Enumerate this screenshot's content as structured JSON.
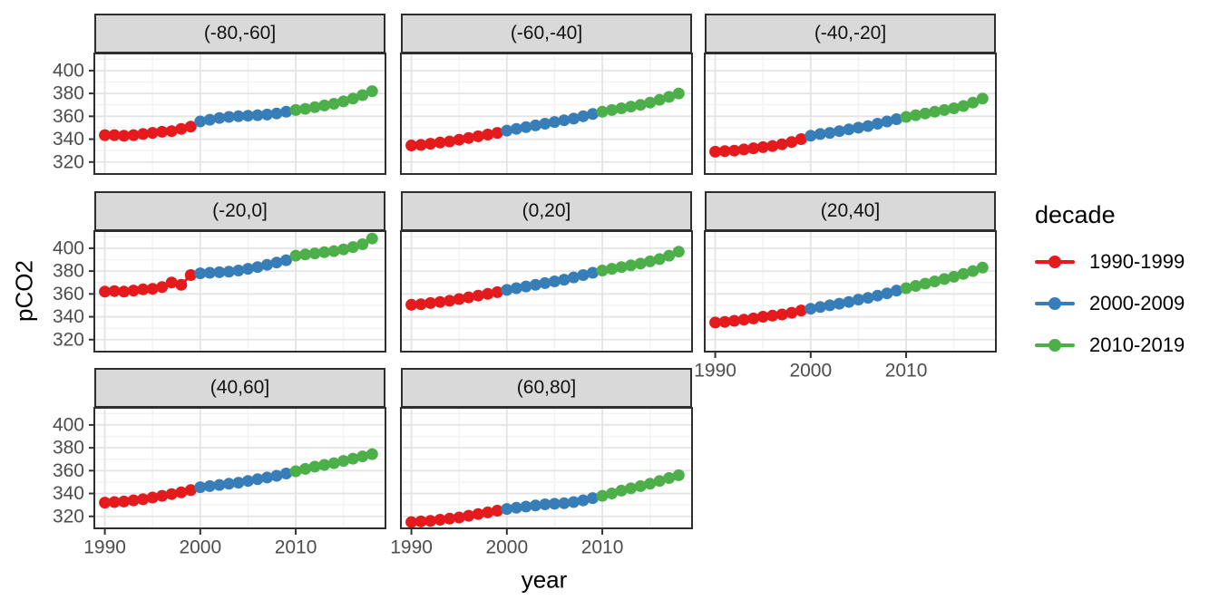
{
  "chart_data": {
    "type": "scatter",
    "title": "",
    "xlabel": "year",
    "ylabel": "pCO2",
    "facet_note": "faceted by latitude band, 3x3 grid, last cell empty",
    "xlim": [
      1988.9,
      2019.4
    ],
    "ylim": [
      309.5,
      415
    ],
    "x_ticks": [
      1990,
      2000,
      2010
    ],
    "x_minor_ticks": [
      1995,
      2005,
      2015
    ],
    "y_ticks": [
      320,
      340,
      360,
      380,
      400
    ],
    "y_minor_ticks": [
      330,
      350,
      370,
      390,
      410
    ],
    "grid": "major and minor gridlines, light gray on white, panel border dark",
    "legend": {
      "title": "decade",
      "position": "right"
    },
    "decades": [
      {
        "label": "1990-1999",
        "color": "#E41A1C"
      },
      {
        "label": "2000-2009",
        "color": "#377EB8"
      },
      {
        "label": "2010-2019",
        "color": "#4DAF4A"
      }
    ],
    "years": [
      1990,
      1991,
      1992,
      1993,
      1994,
      1995,
      1996,
      1997,
      1998,
      1999,
      2000,
      2001,
      2002,
      2003,
      2004,
      2005,
      2006,
      2007,
      2008,
      2009,
      2010,
      2011,
      2012,
      2013,
      2014,
      2015,
      2016,
      2017,
      2018
    ],
    "facets": [
      {
        "label": "(-80,-60]",
        "values": [
          343.5,
          343.5,
          343,
          343.5,
          344.5,
          345.5,
          346.5,
          347,
          349,
          351,
          355.5,
          357,
          358.5,
          359.5,
          360,
          360.5,
          361,
          361.5,
          362.5,
          364,
          365.5,
          366.5,
          368,
          369.5,
          371,
          373,
          375.5,
          378.5,
          382
        ]
      },
      {
        "label": "(-60,-40]",
        "values": [
          334.5,
          335,
          336,
          337,
          338,
          339.5,
          341,
          342.5,
          344,
          345.5,
          347.5,
          349,
          350.5,
          352,
          353.5,
          355,
          356.5,
          358,
          360,
          362,
          364,
          365.5,
          367,
          368.5,
          370,
          372,
          374.5,
          377,
          380
        ]
      },
      {
        "label": "(-40,-20]",
        "values": [
          329,
          329.5,
          330,
          331,
          332,
          333,
          334,
          335.5,
          337.5,
          340,
          343,
          344.5,
          345.5,
          347,
          348.5,
          350,
          351.5,
          353.5,
          355.5,
          357.5,
          359.5,
          361,
          362.5,
          364,
          365.5,
          367,
          369,
          372,
          375.5
        ]
      },
      {
        "label": "(-20,0]",
        "values": [
          362,
          362.5,
          362,
          363,
          364,
          364.5,
          366,
          370,
          368,
          376.5,
          378,
          378.5,
          379,
          379.5,
          380.5,
          382,
          383.5,
          385.5,
          387.5,
          389.5,
          393.5,
          394.5,
          395.5,
          396.5,
          397.5,
          399,
          401,
          403.5,
          408.5
        ]
      },
      {
        "label": "(0,20]",
        "values": [
          350.5,
          351,
          352,
          353,
          354,
          355.5,
          357,
          358.5,
          360,
          361.5,
          363.5,
          365,
          366.5,
          368,
          369.5,
          371,
          372.5,
          374.5,
          376.5,
          378.5,
          380.5,
          382,
          383.5,
          385,
          386.5,
          388.5,
          390.5,
          393.5,
          397
        ]
      },
      {
        "label": "(20,40]",
        "values": [
          335,
          335.5,
          336.5,
          337.5,
          338.5,
          340,
          341,
          342,
          343.5,
          345.5,
          347,
          348.5,
          350,
          351.5,
          353,
          355,
          356.5,
          358.5,
          360.5,
          363,
          365,
          367,
          369,
          371,
          373,
          375,
          377.5,
          380,
          383
        ]
      },
      {
        "label": "(40,60]",
        "values": [
          332,
          332.5,
          333,
          334,
          335,
          336.5,
          338,
          339.5,
          341,
          343,
          345.5,
          346.5,
          347.5,
          348.5,
          349.5,
          351,
          352.5,
          354,
          355.5,
          357.5,
          359.5,
          361.5,
          363.5,
          365,
          366.5,
          368.5,
          370.5,
          372.5,
          374.5
        ]
      },
      {
        "label": "(60,80]",
        "values": [
          315,
          315.5,
          316,
          317,
          318,
          319,
          320.5,
          322,
          323.5,
          325,
          326.5,
          327.5,
          328.5,
          329.5,
          330.5,
          331,
          331.5,
          332.5,
          334,
          336,
          338,
          340,
          342.5,
          344.5,
          346.5,
          348.5,
          351,
          353.5,
          356
        ]
      }
    ]
  },
  "style_colors": {
    "strip_background": "#D9D9D9",
    "panel_border": "#2E2E2E",
    "grid_major": "#E4E4E4",
    "grid_minor": "#F2F2F2",
    "tick_label": "#4D4D4D"
  }
}
